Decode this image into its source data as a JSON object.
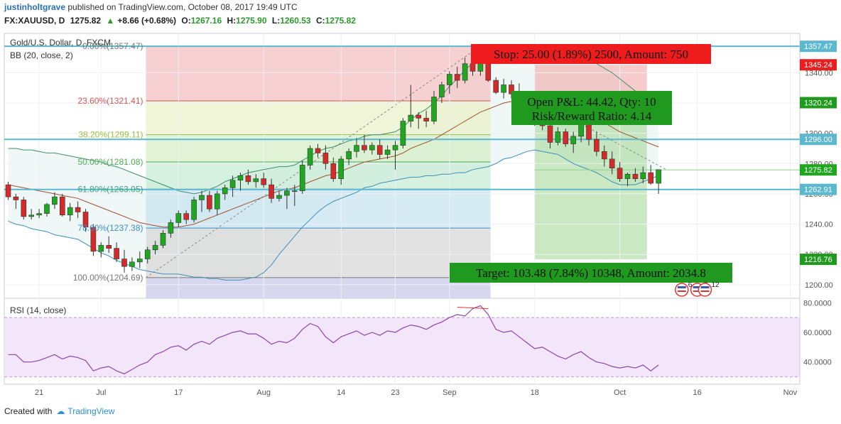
{
  "header": {
    "user": "justinholtgrave",
    "published": "published on TradingView.com, October 08, 2017 19:49 UTC",
    "symbol": "FX:XAUUSD, D",
    "last": "1275.82",
    "change": "+8.66 (+0.68%)",
    "o_label": "O:",
    "o": "1267.16",
    "h_label": "H:",
    "h": "1275.90",
    "l_label": "L:",
    "l": "1260.53",
    "c_label": "C:",
    "c": "1275.82"
  },
  "legend": {
    "title": "Gold/U.S. Dollar, D, FXCM",
    "bb": "BB (20, close, 2)",
    "rsi": "RSI (14, close)"
  },
  "footer": {
    "created": "Created with",
    "brand": "TradingView"
  },
  "fib_labels": [
    {
      "text": "0.00%(1357.47)",
      "price": 1357.47
    },
    {
      "text": "23.60%(1321.41)",
      "price": 1321.41
    },
    {
      "text": "38.20%(1299.11)",
      "price": 1299.11
    },
    {
      "text": "50.00%(1281.08)",
      "price": 1281.08
    },
    {
      "text": "61.80%(1263.05)",
      "price": 1263.05
    },
    {
      "text": "78.60%(1237.38)",
      "price": 1237.38
    },
    {
      "text": "100.00%(1204.69)",
      "price": 1204.69
    }
  ],
  "boxes": {
    "stop": "Stop: 25.00 (1.89%) 2500, Amount: 750",
    "pnl": "Open P&L: 44.42, Qty: 10",
    "rr": "Risk/Reward Ratio: 4.14",
    "target": "Target: 103.48 (7.84%) 10348, Amount: 2034.8"
  },
  "events": [
    {
      "label": "6",
      "x_index": 87
    },
    {
      "label": "7",
      "x_index": 89
    },
    {
      "label": "12",
      "x_index": 90
    }
  ],
  "colors": {
    "up": "#1fa81f",
    "down": "#d42a2a",
    "stop_bg": "#e81f1f",
    "target_bg": "#1f9a1f",
    "bb": "#2e8b2e",
    "rsi": "#8e44ad",
    "hline": "#5bb8cf"
  },
  "chart_data": [
    {
      "type": "candlestick",
      "title": "Gold/U.S. Dollar, D, FXCM",
      "x_tick_labels": [
        {
          "label": "21",
          "index": 4
        },
        {
          "label": "Jul",
          "index": 12
        },
        {
          "label": "17",
          "index": 22
        },
        {
          "label": "Aug",
          "index": 33
        },
        {
          "label": "14",
          "index": 43
        },
        {
          "label": "23",
          "index": 50
        },
        {
          "label": "Sep",
          "index": 57
        },
        {
          "label": "18",
          "index": 68
        },
        {
          "label": "Oct",
          "index": 79
        },
        {
          "label": "16",
          "index": 89
        },
        {
          "label": "Nov",
          "index": 101
        }
      ],
      "y_ticks": [
        1200,
        1220,
        1240,
        1260,
        1280,
        1300,
        1320,
        1340
      ],
      "y_tick_labels": [
        "1200.00",
        "1220.00",
        "1240.00",
        "1260.00",
        "1280.00",
        "1300.00",
        "1320.00",
        "1340.00"
      ],
      "ylim": [
        1191,
        1366
      ],
      "price_badges": [
        {
          "label": "1357.47",
          "price": 1357.47,
          "color": "#5bb8cf"
        },
        {
          "label": "1345.24",
          "price": 1345.24,
          "color": "#e81f1f"
        },
        {
          "label": "1320.24",
          "price": 1320.24,
          "color": "#1f9a1f"
        },
        {
          "label": "1296.00",
          "price": 1296.0,
          "color": "#5bb8cf"
        },
        {
          "label": "1275.82",
          "price": 1275.82,
          "color": "#1fa81f"
        },
        {
          "label": "1262.91",
          "price": 1262.91,
          "color": "#5bb8cf"
        },
        {
          "label": "1216.76",
          "price": 1216.76,
          "color": "#1f9a1f"
        }
      ],
      "horizontal_lines": [
        1357.47,
        1296.0,
        1262.91
      ],
      "position": {
        "entry": 1320.24,
        "stop": 1345.24,
        "target": 1216.76,
        "start_index": 68
      },
      "candles": [
        [
          1266,
          1268,
          1256,
          1258
        ],
        [
          1258,
          1260,
          1250,
          1256
        ],
        [
          1256,
          1258,
          1243,
          1245
        ],
        [
          1245,
          1250,
          1243,
          1246
        ],
        [
          1246,
          1250,
          1244,
          1247
        ],
        [
          1247,
          1254,
          1245,
          1253
        ],
        [
          1253,
          1261,
          1250,
          1258
        ],
        [
          1258,
          1260,
          1245,
          1246
        ],
        [
          1246,
          1254,
          1242,
          1251
        ],
        [
          1251,
          1255,
          1244,
          1248
        ],
        [
          1248,
          1250,
          1235,
          1238
        ],
        [
          1238,
          1240,
          1219,
          1222
        ],
        [
          1222,
          1228,
          1218,
          1226
        ],
        [
          1226,
          1232,
          1221,
          1224
        ],
        [
          1224,
          1228,
          1215,
          1217
        ],
        [
          1217,
          1223,
          1208,
          1212
        ],
        [
          1212,
          1218,
          1209,
          1215
        ],
        [
          1215,
          1222,
          1211,
          1217
        ],
        [
          1217,
          1225,
          1214,
          1223
        ],
        [
          1223,
          1229,
          1220,
          1226
        ],
        [
          1226,
          1236,
          1224,
          1234
        ],
        [
          1234,
          1243,
          1231,
          1241
        ],
        [
          1241,
          1249,
          1238,
          1247
        ],
        [
          1247,
          1249,
          1240,
          1243
        ],
        [
          1243,
          1258,
          1241,
          1256
        ],
        [
          1256,
          1262,
          1248,
          1259
        ],
        [
          1259,
          1262,
          1248,
          1250
        ],
        [
          1250,
          1262,
          1246,
          1260
        ],
        [
          1260,
          1266,
          1256,
          1264
        ],
        [
          1264,
          1272,
          1258,
          1269
        ],
        [
          1269,
          1274,
          1262,
          1272
        ],
        [
          1272,
          1276,
          1266,
          1268
        ],
        [
          1268,
          1273,
          1264,
          1270
        ],
        [
          1270,
          1274,
          1264,
          1266
        ],
        [
          1266,
          1270,
          1254,
          1257
        ],
        [
          1257,
          1262,
          1255,
          1259
        ],
        [
          1259,
          1264,
          1250,
          1262
        ],
        [
          1262,
          1266,
          1252,
          1262
        ],
        [
          1262,
          1282,
          1260,
          1279
        ],
        [
          1279,
          1292,
          1276,
          1290
        ],
        [
          1290,
          1293,
          1284,
          1287
        ],
        [
          1287,
          1292,
          1276,
          1280
        ],
        [
          1280,
          1284,
          1268,
          1270
        ],
        [
          1270,
          1285,
          1266,
          1283
        ],
        [
          1283,
          1290,
          1279,
          1288
        ],
        [
          1288,
          1297,
          1284,
          1292
        ],
        [
          1292,
          1299,
          1287,
          1289
        ],
        [
          1289,
          1294,
          1286,
          1292
        ],
        [
          1292,
          1296,
          1283,
          1286
        ],
        [
          1286,
          1292,
          1283,
          1289
        ],
        [
          1289,
          1295,
          1276,
          1292
        ],
        [
          1292,
          1310,
          1290,
          1308
        ],
        [
          1308,
          1332,
          1304,
          1312
        ],
        [
          1312,
          1314,
          1303,
          1310
        ],
        [
          1310,
          1315,
          1304,
          1308
        ],
        [
          1308,
          1328,
          1306,
          1324
        ],
        [
          1324,
          1334,
          1320,
          1332
        ],
        [
          1332,
          1341,
          1326,
          1339
        ],
        [
          1339,
          1344,
          1330,
          1335
        ],
        [
          1335,
          1350,
          1333,
          1346
        ],
        [
          1346,
          1352,
          1338,
          1341
        ],
        [
          1341,
          1358,
          1338,
          1354
        ],
        [
          1354,
          1355,
          1334,
          1335
        ],
        [
          1335,
          1337,
          1326,
          1327
        ],
        [
          1327,
          1336,
          1323,
          1332
        ],
        [
          1332,
          1335,
          1323,
          1326
        ],
        [
          1326,
          1333,
          1316,
          1319
        ],
        [
          1319,
          1324,
          1311,
          1313
        ],
        [
          1313,
          1316,
          1305,
          1307
        ],
        [
          1307,
          1313,
          1302,
          1305
        ],
        [
          1305,
          1310,
          1290,
          1294
        ],
        [
          1294,
          1304,
          1292,
          1301
        ],
        [
          1301,
          1303,
          1291,
          1293
        ],
        [
          1293,
          1301,
          1287,
          1298
        ],
        [
          1298,
          1312,
          1294,
          1309
        ],
        [
          1309,
          1310,
          1292,
          1296
        ],
        [
          1296,
          1301,
          1285,
          1288
        ],
        [
          1288,
          1292,
          1278,
          1283
        ],
        [
          1283,
          1288,
          1273,
          1277
        ],
        [
          1277,
          1281,
          1268,
          1270
        ],
        [
          1270,
          1274,
          1265,
          1273
        ],
        [
          1273,
          1277,
          1268,
          1270
        ],
        [
          1270,
          1278,
          1267,
          1274
        ],
        [
          1274,
          1279,
          1266,
          1267
        ],
        [
          1267,
          1276,
          1260,
          1276
        ]
      ],
      "bollinger": {
        "upper": [
          1290,
          1290,
          1289,
          1289,
          1288,
          1287,
          1287,
          1286,
          1285,
          1284,
          1283,
          1282,
          1281,
          1279,
          1278,
          1276,
          1274,
          1272,
          1270,
          1268,
          1266,
          1264,
          1262,
          1261,
          1260,
          1261,
          1263,
          1265,
          1268,
          1270,
          1272,
          1274,
          1275,
          1276,
          1277,
          1278,
          1278,
          1279,
          1282,
          1285,
          1288,
          1290,
          1291,
          1293,
          1295,
          1296,
          1298,
          1299,
          1299,
          1300,
          1301,
          1304,
          1309,
          1313,
          1316,
          1320,
          1325,
          1331,
          1336,
          1342,
          1346,
          1351,
          1354,
          1356,
          1357,
          1358,
          1358,
          1358,
          1357,
          1356,
          1355,
          1354,
          1353,
          1352,
          1350,
          1348,
          1346,
          1343,
          1340,
          1336,
          1332,
          1328,
          1322,
          1316,
          1310
        ],
        "middle": [
          1266,
          1265,
          1264,
          1263,
          1262,
          1261,
          1260,
          1259,
          1258,
          1257,
          1255,
          1253,
          1251,
          1249,
          1247,
          1245,
          1243,
          1241,
          1240,
          1239,
          1238,
          1238,
          1238,
          1239,
          1240,
          1242,
          1244,
          1246,
          1248,
          1250,
          1252,
          1254,
          1256,
          1258,
          1260,
          1262,
          1263,
          1264,
          1266,
          1268,
          1270,
          1272,
          1273,
          1275,
          1277,
          1279,
          1281,
          1282,
          1283,
          1284,
          1285,
          1287,
          1290,
          1292,
          1294,
          1296,
          1299,
          1302,
          1305,
          1308,
          1311,
          1314,
          1316,
          1318,
          1320,
          1321,
          1322,
          1323,
          1323,
          1322,
          1321,
          1320,
          1318,
          1316,
          1314,
          1312,
          1310,
          1307,
          1304,
          1301,
          1299,
          1297,
          1295,
          1293,
          1291
        ],
        "lower": [
          1242,
          1240,
          1239,
          1237,
          1236,
          1235,
          1233,
          1232,
          1231,
          1230,
          1227,
          1224,
          1221,
          1219,
          1216,
          1214,
          1212,
          1210,
          1209,
          1208,
          1207,
          1207,
          1207,
          1206,
          1205,
          1205,
          1204,
          1204,
          1203,
          1203,
          1203,
          1204,
          1205,
          1208,
          1213,
          1220,
          1226,
          1232,
          1238,
          1243,
          1248,
          1252,
          1255,
          1257,
          1259,
          1261,
          1264,
          1265,
          1267,
          1268,
          1269,
          1270,
          1271,
          1271,
          1272,
          1272,
          1273,
          1273,
          1274,
          1274,
          1276,
          1277,
          1278,
          1280,
          1283,
          1284,
          1286,
          1288,
          1289,
          1288,
          1287,
          1286,
          1283,
          1280,
          1278,
          1276,
          1274,
          1271,
          1268,
          1266,
          1266,
          1266,
          1268,
          1270,
          1272
        ]
      }
    },
    {
      "type": "line",
      "title": "RSI (14, close)",
      "y_ticks": [
        40,
        60,
        80
      ],
      "y_tick_labels": [
        "40.0000",
        "60.0000",
        "80.0000"
      ],
      "ylim": [
        25,
        83
      ],
      "band": [
        30,
        70
      ],
      "series": [
        {
          "values": [
            45,
            45,
            40,
            40,
            41,
            43,
            45,
            42,
            44,
            43,
            41,
            34,
            36,
            37,
            34,
            32,
            35,
            38,
            40,
            45,
            47,
            50,
            51,
            48,
            52,
            54,
            52,
            56,
            58,
            60,
            61,
            59,
            59,
            56,
            52,
            54,
            53,
            56,
            62,
            66,
            64,
            57,
            53,
            57,
            59,
            61,
            58,
            60,
            58,
            61,
            60,
            63,
            65,
            64,
            62,
            65,
            67,
            70,
            72,
            71,
            76,
            78,
            72,
            62,
            60,
            61,
            57,
            53,
            49,
            50,
            47,
            44,
            42,
            45,
            47,
            43,
            40,
            39,
            37,
            36,
            37,
            36,
            38,
            34,
            38
          ]
        }
      ]
    }
  ]
}
